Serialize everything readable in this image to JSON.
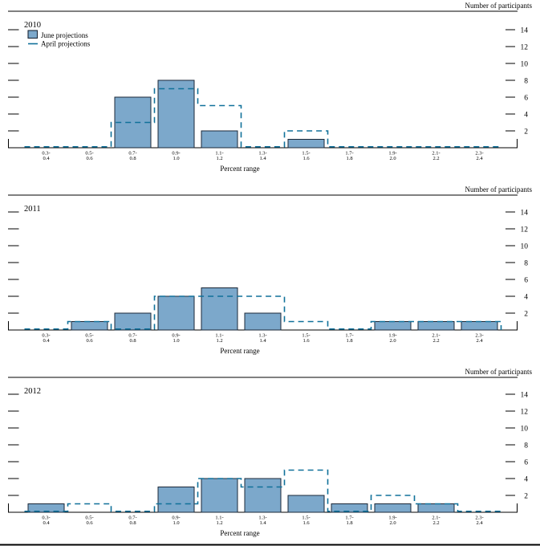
{
  "figure": {
    "y_axis_label": "Number of participants",
    "x_axis_label": "Percent range",
    "legend": {
      "june_label": "June projections",
      "april_label": "April projections"
    },
    "colors": {
      "june_bar_fill": "#7CA8CB",
      "bar_edge": "#1b2838",
      "april_dash": "#10719A",
      "axis": "#000000"
    }
  },
  "chart_data": [
    {
      "type": "bar",
      "title": "2010",
      "show_legend": true,
      "categories": [
        "0.3-0.4",
        "0.5-0.6",
        "0.7-0.8",
        "0.9-1.0",
        "1.1-1.2",
        "1.3-1.4",
        "1.5-1.6",
        "1.7-1.8",
        "1.9-2.0",
        "2.1-2.2",
        "2.3-2.4"
      ],
      "series": [
        {
          "name": "June projections",
          "style": "filled_bars",
          "values": [
            0,
            0,
            6,
            8,
            2,
            0,
            1,
            0,
            0,
            0,
            0
          ]
        },
        {
          "name": "April projections",
          "style": "dashed_step_outline",
          "values": [
            0,
            0,
            3,
            7,
            5,
            0,
            2,
            0,
            0,
            0,
            0
          ]
        }
      ],
      "xlabel": "Percent range",
      "ylabel": "Number of participants",
      "y_ticks": [
        2,
        4,
        6,
        8,
        10,
        12,
        14
      ],
      "ylim": [
        0,
        16.2
      ],
      "grid": false,
      "legend_position": "top-left"
    },
    {
      "type": "bar",
      "title": "2011",
      "show_legend": false,
      "categories": [
        "0.3-0.4",
        "0.5-0.6",
        "0.7-0.8",
        "0.9-1.0",
        "1.1-1.2",
        "1.3-1.4",
        "1.5-1.6",
        "1.7-1.8",
        "1.9-2.0",
        "2.1-2.2",
        "2.3-2.4"
      ],
      "series": [
        {
          "name": "June projections",
          "style": "filled_bars",
          "values": [
            0,
            1,
            2,
            4,
            5,
            2,
            0,
            0,
            1,
            1,
            1
          ]
        },
        {
          "name": "April projections",
          "style": "dashed_step_outline",
          "values": [
            0,
            1,
            0,
            4,
            4,
            4,
            1,
            0,
            1,
            1,
            1
          ]
        }
      ],
      "xlabel": "Percent range",
      "ylabel": "Number of participants",
      "y_ticks": [
        2,
        4,
        6,
        8,
        10,
        12,
        14
      ],
      "ylim": [
        0,
        16
      ],
      "grid": false,
      "legend_position": "none"
    },
    {
      "type": "bar",
      "title": "2012",
      "show_legend": false,
      "categories": [
        "0.3-0.4",
        "0.5-0.6",
        "0.7-0.8",
        "0.9-1.0",
        "1.1-1.2",
        "1.3-1.4",
        "1.5-1.6",
        "1.7-1.8",
        "1.9-2.0",
        "2.1-2.2",
        "2.3-2.4"
      ],
      "series": [
        {
          "name": "June projections",
          "style": "filled_bars",
          "values": [
            1,
            0,
            0,
            3,
            4,
            4,
            2,
            1,
            1,
            1,
            0
          ]
        },
        {
          "name": "April projections",
          "style": "dashed_step_outline",
          "values": [
            0,
            1,
            0,
            1,
            4,
            3,
            5,
            0,
            2,
            1,
            0
          ]
        }
      ],
      "xlabel": "Percent range",
      "ylabel": "Number of participants",
      "y_ticks": [
        2,
        4,
        6,
        8,
        10,
        12,
        14
      ],
      "ylim": [
        0,
        16
      ],
      "grid": false,
      "legend_position": "none"
    }
  ]
}
